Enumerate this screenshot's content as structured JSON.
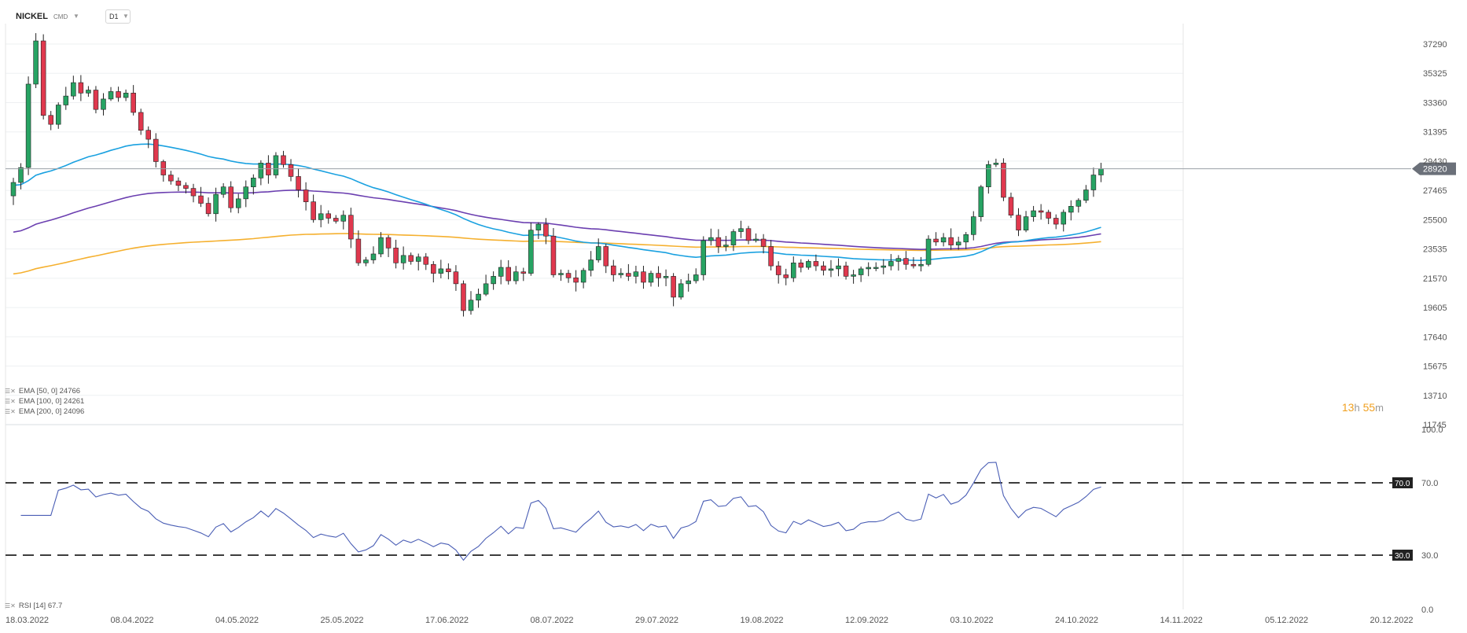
{
  "header": {
    "symbol": "NICKEL",
    "source": "CMD",
    "timeframe": "D1"
  },
  "price_axis_labels": [
    "37290",
    "35325",
    "33360",
    "31395",
    "29430",
    "27465",
    "25500",
    "23535",
    "21570",
    "19605",
    "17640",
    "15675",
    "13710",
    "11745"
  ],
  "current_price_label": "28920",
  "countdown": {
    "hours": "13",
    "h": "h",
    "minutes": "55",
    "m": "m"
  },
  "indicators": [
    {
      "label": "EMA [50, 0]",
      "value": "24766",
      "color": "#1aa1e0"
    },
    {
      "label": "EMA [100, 0]",
      "value": "24261",
      "color": "#6b3fb0"
    },
    {
      "label": "EMA [200, 0]",
      "value": "24096",
      "color": "#f5b02f"
    }
  ],
  "rsi": {
    "label": "RSI [14]",
    "value": "67.7",
    "levels": [
      "100.0",
      "70.0",
      "30.0",
      "0.0"
    ],
    "color": "#4a5eb5"
  },
  "date_labels": [
    "18.03.2022",
    "08.04.2022",
    "04.05.2022",
    "25.05.2022",
    "17.06.2022",
    "08.07.2022",
    "29.07.2022",
    "19.08.2022",
    "12.09.2022",
    "03.10.2022",
    "24.10.2022",
    "14.11.2022",
    "05.12.2022",
    "20.12.2022"
  ],
  "colors": {
    "up": "#27a363",
    "down": "#e0384e",
    "grid": "#eef0f2",
    "axis_text": "#555555",
    "current_bg": "#6b7079"
  },
  "chart_data": {
    "type": "candlestick",
    "symbol": "NICKEL",
    "timeframe": "D1",
    "ylim": [
      11745,
      38500
    ],
    "rsi_ylim": [
      0,
      100
    ],
    "closes": [
      28000,
      29000,
      34600,
      37500,
      32500,
      31900,
      33200,
      33800,
      34700,
      34000,
      34200,
      32900,
      33600,
      34100,
      33700,
      34000,
      32700,
      31500,
      30900,
      29400,
      28500,
      28100,
      27800,
      27600,
      27100,
      26600,
      25900,
      27200,
      27700,
      26300,
      26900,
      27700,
      28300,
      29300,
      28500,
      29800,
      29200,
      28400,
      27500,
      26700,
      25500,
      25900,
      25600,
      25400,
      25800,
      24200,
      22600,
      22800,
      23200,
      24300,
      23600,
      22600,
      23100,
      22700,
      23000,
      22500,
      21900,
      22200,
      22000,
      21200,
      19400,
      20100,
      20500,
      21200,
      21700,
      22300,
      21400,
      22000,
      21900,
      24800,
      25200,
      24400,
      21800,
      21900,
      21600,
      21300,
      22100,
      22800,
      23700,
      22400,
      21800,
      21900,
      21700,
      22000,
      21300,
      21900,
      21600,
      21700,
      20300,
      21200,
      21400,
      21800,
      24100,
      24300,
      23700,
      23800,
      24700,
      24900,
      24100,
      24200,
      23700,
      22400,
      21800,
      21600,
      22600,
      22300,
      22700,
      22400,
      22100,
      22200,
      22400,
      21700,
      21800,
      22200,
      22300,
      22300,
      22400,
      22700,
      22900,
      22500,
      22400,
      22500,
      24200,
      24000,
      24300,
      23800,
      24000,
      24500,
      25700,
      27700,
      29200,
      29300,
      27000,
      25800,
      24800,
      25700,
      26100,
      26000,
      25600,
      25200,
      26000,
      26400,
      26800,
      27500,
      28500,
      28920
    ],
    "ema50_last": 24766,
    "ema100_last": 24261,
    "ema200_last": 24096,
    "rsi_last": 67.7,
    "rsi_levels": [
      30,
      70
    ]
  }
}
